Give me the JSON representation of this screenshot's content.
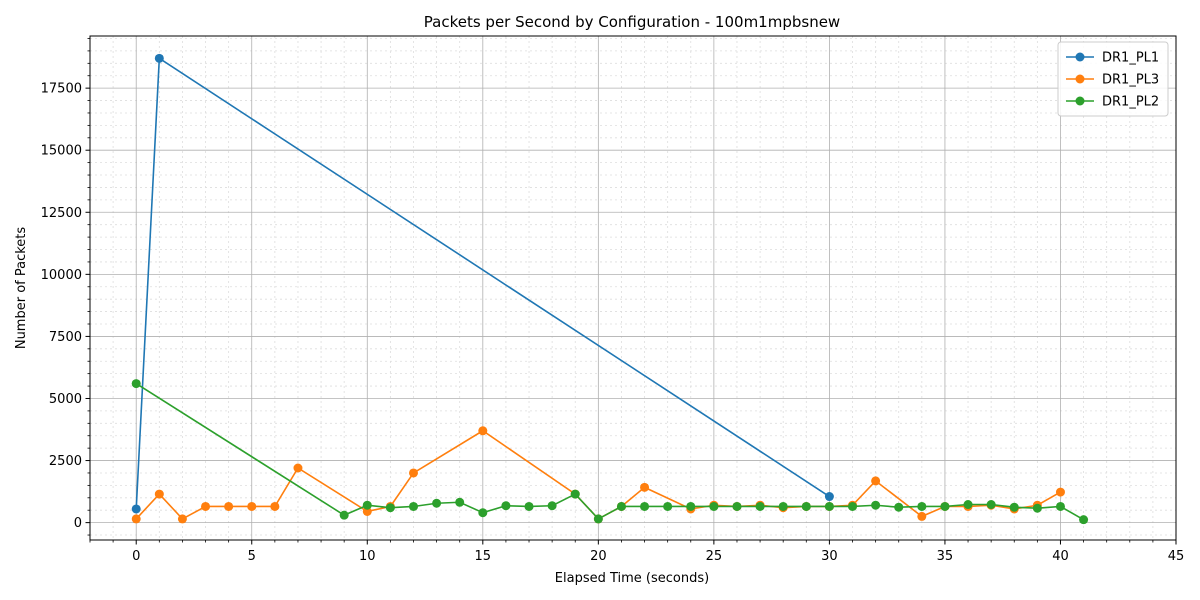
{
  "chart_data": {
    "type": "line",
    "title": "Packets per Second by Configuration - 100m1mpbsnew",
    "xlabel": "Elapsed Time (seconds)",
    "ylabel": "Number of Packets",
    "xlim": [
      -2,
      45
    ],
    "ylim": [
      -700,
      19600
    ],
    "xticks": [
      0,
      5,
      10,
      15,
      20,
      25,
      30,
      35,
      40,
      45
    ],
    "yticks": [
      0,
      2500,
      5000,
      7500,
      10000,
      12500,
      15000,
      17500
    ],
    "grid": true,
    "legend_position": "top-right",
    "series": [
      {
        "name": "DR1_PL1",
        "color": "#1f77b4",
        "x": [
          0,
          1,
          30
        ],
        "y": [
          550,
          18700,
          1050
        ]
      },
      {
        "name": "DR1_PL3",
        "color": "#ff7f0e",
        "x": [
          0,
          1,
          2,
          3,
          4,
          5,
          6,
          7,
          10,
          11,
          12,
          15,
          19,
          20,
          21,
          22,
          24,
          25,
          26,
          27,
          28,
          29,
          30,
          31,
          32,
          34,
          35,
          36,
          37,
          38,
          39,
          40
        ],
        "y": [
          150,
          1150,
          150,
          650,
          650,
          650,
          650,
          2200,
          450,
          650,
          2000,
          3700,
          1150,
          150,
          650,
          1420,
          550,
          700,
          650,
          700,
          600,
          650,
          650,
          700,
          1680,
          250,
          650,
          650,
          700,
          550,
          700,
          1230
        ]
      },
      {
        "name": "DR1_PL2",
        "color": "#2ca02c",
        "x": [
          0,
          9,
          10,
          11,
          12,
          13,
          14,
          15,
          16,
          17,
          18,
          19,
          20,
          21,
          22,
          23,
          24,
          25,
          26,
          27,
          28,
          29,
          30,
          31,
          32,
          33,
          34,
          35,
          36,
          37,
          38,
          39,
          40,
          41
        ],
        "y": [
          5600,
          300,
          700,
          600,
          650,
          780,
          820,
          400,
          680,
          650,
          680,
          1150,
          150,
          650,
          650,
          650,
          650,
          650,
          650,
          650,
          650,
          650,
          650,
          650,
          700,
          620,
          650,
          650,
          730,
          730,
          620,
          580,
          650,
          120
        ]
      }
    ]
  }
}
